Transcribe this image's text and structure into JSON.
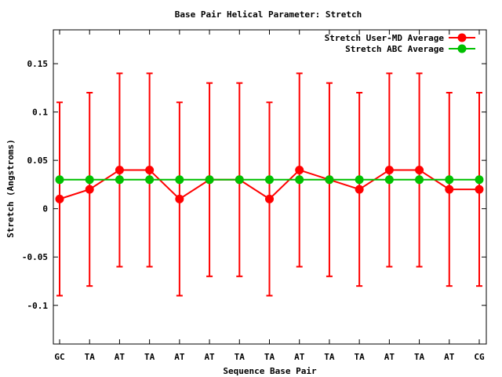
{
  "chart_data": {
    "type": "line",
    "title": "Base Pair Helical Parameter: Stretch",
    "xlabel": "Sequence Base Pair",
    "ylabel": "Stretch (Angstroms)",
    "categories": [
      "GC",
      "TA",
      "AT",
      "TA",
      "AT",
      "AT",
      "TA",
      "TA",
      "AT",
      "TA",
      "TA",
      "AT",
      "TA",
      "AT",
      "CG"
    ],
    "ylim": [
      -0.14,
      0.185
    ],
    "yticks": [
      -0.1,
      -0.05,
      0,
      0.05,
      0.1,
      0.15
    ],
    "ytick_labels": [
      "-0.1",
      "-0.05",
      "0",
      "0.05",
      "0.1",
      "0.15"
    ],
    "legend_position": "top-right",
    "grid": false,
    "series": [
      {
        "name": "Stretch User-MD Average",
        "color": "#ff0000",
        "values": [
          0.01,
          0.02,
          0.04,
          0.04,
          0.01,
          0.03,
          0.03,
          0.01,
          0.04,
          0.03,
          0.02,
          0.04,
          0.04,
          0.02,
          0.02
        ],
        "err_low": [
          -0.09,
          -0.08,
          -0.06,
          -0.06,
          -0.09,
          -0.07,
          -0.07,
          -0.09,
          -0.06,
          -0.07,
          -0.08,
          -0.06,
          -0.06,
          -0.08,
          -0.08
        ],
        "err_high": [
          0.11,
          0.12,
          0.14,
          0.14,
          0.11,
          0.13,
          0.13,
          0.11,
          0.14,
          0.13,
          0.12,
          0.14,
          0.14,
          0.12,
          0.12
        ]
      },
      {
        "name": "Stretch ABC Average",
        "color": "#00c000",
        "values": [
          0.03,
          0.03,
          0.03,
          0.03,
          0.03,
          0.03,
          0.03,
          0.03,
          0.03,
          0.03,
          0.03,
          0.03,
          0.03,
          0.03,
          0.03
        ]
      }
    ]
  }
}
